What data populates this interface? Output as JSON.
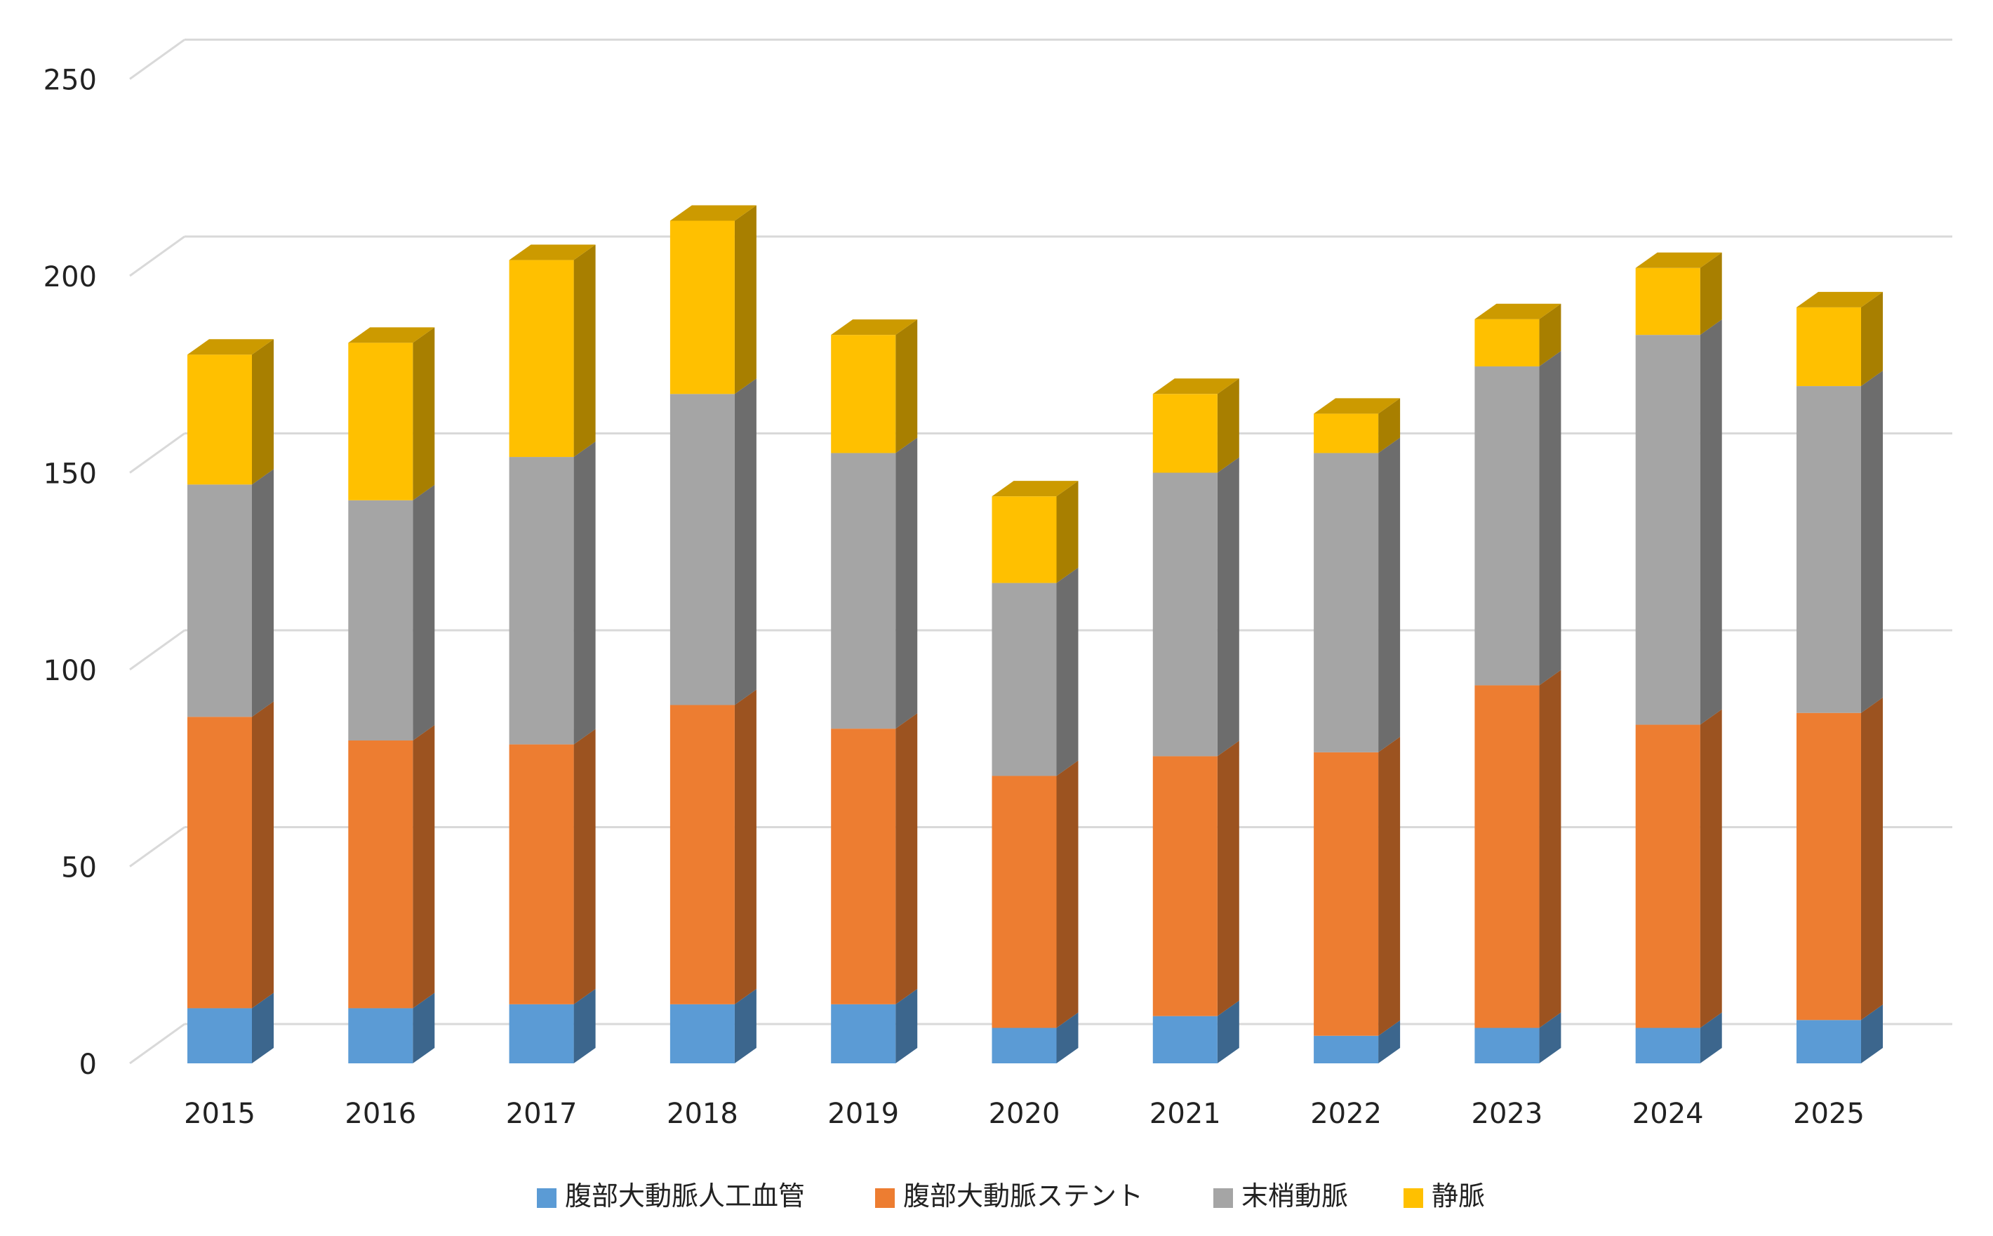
{
  "chart_data": {
    "type": "bar",
    "stacked": true,
    "three_d": true,
    "categories": [
      "2015",
      "2016",
      "2017",
      "2018",
      "2019",
      "2020",
      "2021",
      "2022",
      "2023",
      "2024",
      "2025"
    ],
    "series": [
      {
        "name": "腹部大動脈人工血管",
        "color": "#5B9BD5",
        "values": [
          14,
          14,
          15,
          15,
          15,
          9,
          12,
          7,
          9,
          9,
          11
        ]
      },
      {
        "name": "腹部大動脈ステント",
        "color": "#ED7D31",
        "values": [
          74,
          68,
          66,
          76,
          70,
          64,
          66,
          72,
          87,
          77,
          78
        ]
      },
      {
        "name": "末梢動脈",
        "color": "#A5A5A5",
        "values": [
          59,
          61,
          73,
          79,
          70,
          49,
          72,
          76,
          81,
          99,
          83
        ]
      },
      {
        "name": "静脈",
        "color": "#FFC000",
        "values": [
          33,
          40,
          50,
          44,
          30,
          22,
          20,
          10,
          12,
          17,
          20
        ]
      }
    ],
    "y_ticks": [
      "0",
      "50",
      "100",
      "150",
      "200",
      "250"
    ],
    "ylim": [
      0,
      250
    ],
    "grid": true,
    "legend_position": "bottom"
  }
}
